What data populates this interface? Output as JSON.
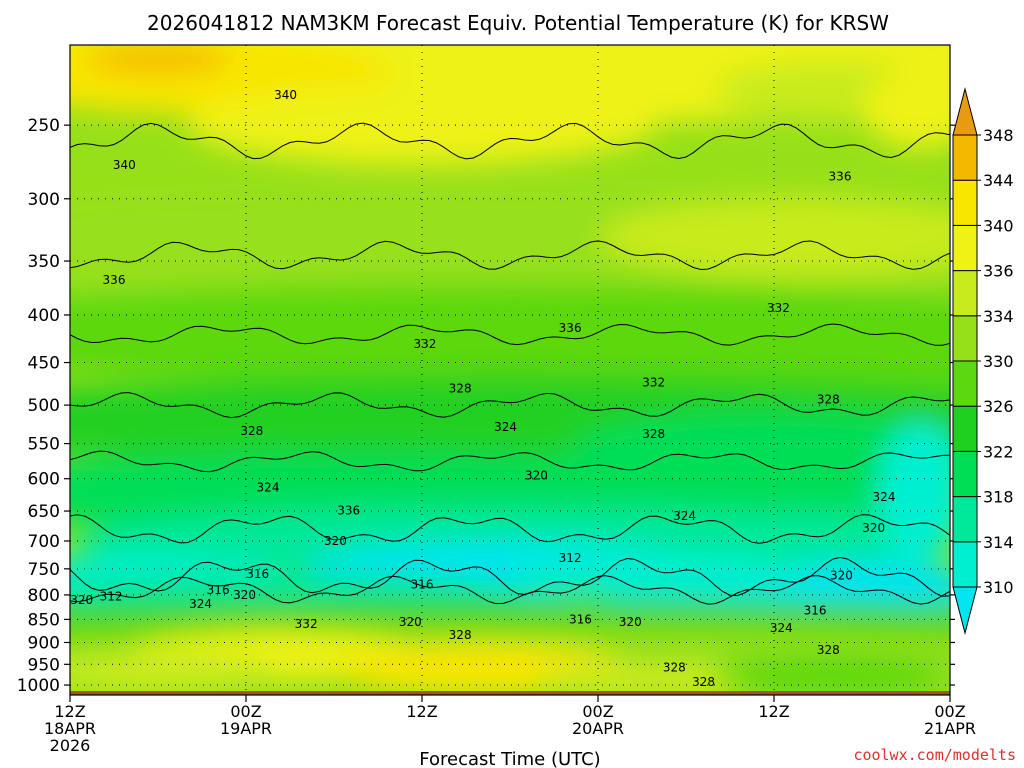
{
  "title": "2026041812 NAM3KM Forecast Equiv. Potential Temperature (K) for KRSW",
  "credit": "coolwx.com/modelts",
  "chart_data": {
    "type": "heatmap",
    "title": "2026041812 NAM3KM Forecast Equiv. Potential Temperature (K) for KRSW",
    "xlabel": "Forecast Time (UTC)",
    "ylabel": "",
    "x_hours_range": [
      0,
      60
    ],
    "x_ticks": [
      {
        "hour": 0,
        "lines": [
          "12Z",
          "18APR",
          "2026"
        ]
      },
      {
        "hour": 12,
        "lines": [
          "00Z",
          "19APR"
        ]
      },
      {
        "hour": 24,
        "lines": [
          "12Z"
        ]
      },
      {
        "hour": 36,
        "lines": [
          "00Z",
          "20APR"
        ]
      },
      {
        "hour": 48,
        "lines": [
          "12Z"
        ]
      },
      {
        "hour": 60,
        "lines": [
          "00Z",
          "21APR"
        ]
      }
    ],
    "y_axis": {
      "scale": "log",
      "top_hPa": 205,
      "bottom_hPa": 1025,
      "ground_hPa": 1015
    },
    "y_ticks": [
      250,
      300,
      350,
      400,
      450,
      500,
      550,
      600,
      650,
      700,
      750,
      800,
      850,
      900,
      950,
      1000
    ],
    "colorbar": {
      "levels": [
        310,
        314,
        318,
        322,
        326,
        330,
        334,
        336,
        340,
        344,
        348
      ],
      "labels": [
        "310",
        "314",
        "318",
        "322",
        "326",
        "330",
        "334",
        "336",
        "340",
        "344",
        "348"
      ],
      "colors": [
        "#00e5f0",
        "#00efd0",
        "#00e89a",
        "#00de56",
        "#20d020",
        "#5cd810",
        "#96e01a",
        "#c8eb1e",
        "#eef215",
        "#f8e600",
        "#f4b800",
        "#e89a12"
      ]
    },
    "grid": true,
    "contour_interval": 4,
    "contour_labels": [
      {
        "value": 340,
        "hour": 14.7,
        "hPa": 232
      },
      {
        "value": 340,
        "hour": 3.7,
        "hPa": 276
      },
      {
        "value": 336,
        "hour": 52.5,
        "hPa": 284
      },
      {
        "value": 336,
        "hour": 3.0,
        "hPa": 367
      },
      {
        "value": 336,
        "hour": 34.1,
        "hPa": 413
      },
      {
        "value": 336,
        "hour": 19.0,
        "hPa": 649
      },
      {
        "value": 332,
        "hour": 48.3,
        "hPa": 393
      },
      {
        "value": 332,
        "hour": 24.2,
        "hPa": 430
      },
      {
        "value": 332,
        "hour": 39.8,
        "hPa": 473
      },
      {
        "value": 332,
        "hour": 16.1,
        "hPa": 860
      },
      {
        "value": 328,
        "hour": 26.6,
        "hPa": 480
      },
      {
        "value": 328,
        "hour": 51.7,
        "hPa": 493
      },
      {
        "value": 328,
        "hour": 12.4,
        "hPa": 533
      },
      {
        "value": 328,
        "hour": 39.8,
        "hPa": 537
      },
      {
        "value": 328,
        "hour": 26.6,
        "hPa": 883
      },
      {
        "value": 328,
        "hour": 51.7,
        "hPa": 917
      },
      {
        "value": 328,
        "hour": 41.2,
        "hPa": 958
      },
      {
        "value": 328,
        "hour": 43.2,
        "hPa": 992
      },
      {
        "value": 324,
        "hour": 29.7,
        "hPa": 528
      },
      {
        "value": 324,
        "hour": 13.5,
        "hPa": 613
      },
      {
        "value": 324,
        "hour": 55.5,
        "hPa": 628
      },
      {
        "value": 324,
        "hour": 41.9,
        "hPa": 658
      },
      {
        "value": 324,
        "hour": 8.9,
        "hPa": 818
      },
      {
        "value": 324,
        "hour": 48.5,
        "hPa": 868
      },
      {
        "value": 320,
        "hour": 31.8,
        "hPa": 595
      },
      {
        "value": 320,
        "hour": 18.1,
        "hPa": 700
      },
      {
        "value": 320,
        "hour": 54.8,
        "hPa": 678
      },
      {
        "value": 320,
        "hour": 52.6,
        "hPa": 762
      },
      {
        "value": 320,
        "hour": 11.9,
        "hPa": 800
      },
      {
        "value": 320,
        "hour": 0.8,
        "hPa": 810
      },
      {
        "value": 320,
        "hour": 23.2,
        "hPa": 856
      },
      {
        "value": 320,
        "hour": 38.2,
        "hPa": 856
      },
      {
        "value": 316,
        "hour": 12.8,
        "hPa": 760
      },
      {
        "value": 316,
        "hour": 10.1,
        "hPa": 790
      },
      {
        "value": 316,
        "hour": 24.0,
        "hPa": 780
      },
      {
        "value": 316,
        "hour": 34.8,
        "hPa": 850
      },
      {
        "value": 316,
        "hour": 50.8,
        "hPa": 831
      },
      {
        "value": 312,
        "hour": 2.8,
        "hPa": 803
      },
      {
        "value": 312,
        "hour": 34.1,
        "hPa": 730
      }
    ]
  }
}
